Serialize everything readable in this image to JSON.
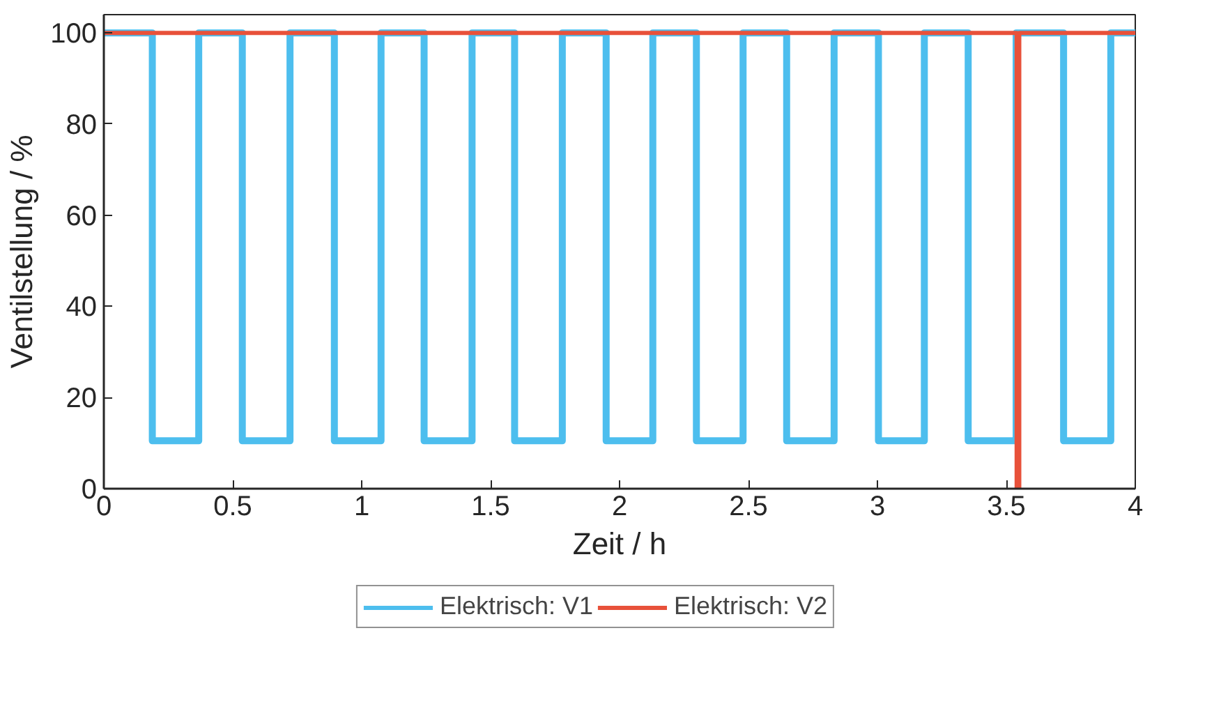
{
  "chart_data": {
    "type": "step",
    "xlabel": "Zeit / h",
    "ylabel": "Ventilstellung / %",
    "series": [
      {
        "name": "Elektrisch: V1",
        "color": "#4dbeee",
        "x": [
          0,
          0.188,
          0.368,
          0.537,
          0.722,
          0.894,
          1.075,
          1.242,
          1.428,
          1.593,
          1.778,
          1.948,
          2.129,
          2.298,
          2.479,
          2.648,
          2.832,
          3.004,
          3.182,
          3.352,
          3.538,
          3.722,
          3.905,
          4
        ],
        "values": [
          100,
          10.5,
          100,
          10.5,
          100,
          10.5,
          100,
          10.5,
          100,
          10.5,
          100,
          10.5,
          100,
          10.5,
          100,
          10.5,
          100,
          10.5,
          100,
          10.5,
          100,
          10.5,
          100,
          100
        ]
      },
      {
        "name": "Elektrisch: V2",
        "color": "#e8513a",
        "x": [
          0,
          3.54,
          3.55,
          4
        ],
        "values": [
          100,
          0,
          100,
          100
        ]
      }
    ],
    "xlim": [
      0,
      4
    ],
    "xticks": [
      0,
      0.5,
      1,
      1.5,
      2,
      2.5,
      3,
      3.5,
      4
    ],
    "ylim": [
      0,
      104
    ],
    "yticks": [
      0,
      20,
      40,
      60,
      80,
      100
    ],
    "grid": false,
    "legend": "bottom",
    "line_style": "solid",
    "marker": "none"
  }
}
